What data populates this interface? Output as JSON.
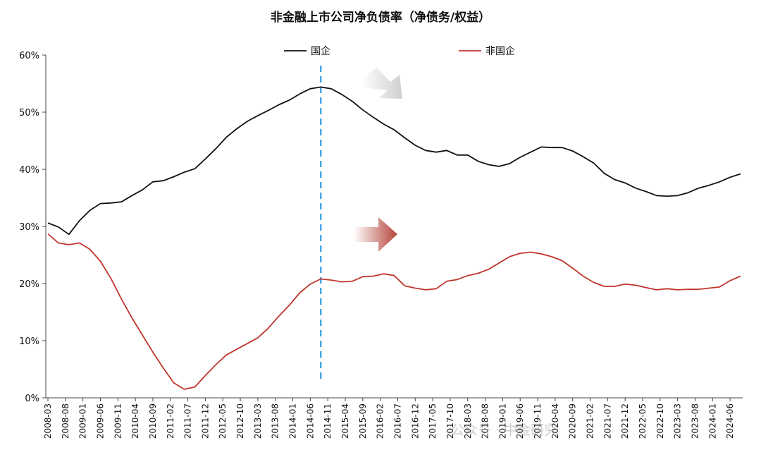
{
  "chart_data": {
    "type": "line",
    "title": "非金融上市公司净负债率（净债务/权益）",
    "xlabel": "",
    "ylabel": "",
    "ylim": [
      0,
      60
    ],
    "y_ticks": [
      "0%",
      "10%",
      "20%",
      "30%",
      "40%",
      "50%",
      "60%"
    ],
    "legend_position": "top",
    "grid": false,
    "x": [
      "2008-03",
      "2008-06",
      "2008-09",
      "2008-12",
      "2009-03",
      "2009-06",
      "2009-09",
      "2009-12",
      "2010-03",
      "2010-06",
      "2010-09",
      "2010-12",
      "2011-03",
      "2011-06",
      "2011-09",
      "2011-12",
      "2012-03",
      "2012-06",
      "2012-09",
      "2012-12",
      "2013-03",
      "2013-06",
      "2013-09",
      "2013-12",
      "2014-03",
      "2014-06",
      "2014-09",
      "2014-12",
      "2015-03",
      "2015-06",
      "2015-09",
      "2015-12",
      "2016-03",
      "2016-06",
      "2016-09",
      "2016-12",
      "2017-03",
      "2017-06",
      "2017-09",
      "2017-12",
      "2018-03",
      "2018-06",
      "2018-09",
      "2018-12",
      "2019-03",
      "2019-06",
      "2019-09",
      "2019-12",
      "2020-03",
      "2020-06",
      "2020-09",
      "2020-12",
      "2021-03",
      "2021-06",
      "2021-09",
      "2021-12",
      "2022-03",
      "2022-06",
      "2022-09",
      "2022-12",
      "2023-03",
      "2023-06",
      "2023-09",
      "2023-12",
      "2024-03",
      "2024-06",
      "2024-09"
    ],
    "x_tick_labels": [
      "2008-03",
      "2008-08",
      "2009-01",
      "2009-06",
      "2009-11",
      "2010-04",
      "2010-09",
      "2011-02",
      "2011-07",
      "2011-12",
      "2012-05",
      "2012-10",
      "2013-03",
      "2013-08",
      "2014-01",
      "2014-06",
      "2014-11",
      "2015-04",
      "2015-09",
      "2016-02",
      "2016-07",
      "2016-12",
      "2017-05",
      "2017-10",
      "2018-03",
      "2018-08",
      "2019-01",
      "2019-06",
      "2019-11",
      "2020-04",
      "2020-09",
      "2021-02",
      "2021-07",
      "2021-12",
      "2022-05",
      "2022-10",
      "2023-03",
      "2023-08",
      "2024-01",
      "2024-06"
    ],
    "series": [
      {
        "name": "国企",
        "color": "#111111",
        "values": [
          30.6,
          29.9,
          28.6,
          31.0,
          32.8,
          34.0,
          34.1,
          34.3,
          35.4,
          36.4,
          37.8,
          38.0,
          38.7,
          39.5,
          40.1,
          41.8,
          43.6,
          45.6,
          47.1,
          48.4,
          49.4,
          50.3,
          51.3,
          52.1,
          53.2,
          54.1,
          54.4,
          54.1,
          53.1,
          51.9,
          50.4,
          49.1,
          47.9,
          46.9,
          45.5,
          44.2,
          43.3,
          43.0,
          43.3,
          42.5,
          42.5,
          41.4,
          40.8,
          40.5,
          41.0,
          42.1,
          43.0,
          43.9,
          43.8,
          43.8,
          43.2,
          42.2,
          41.1,
          39.3,
          38.2,
          37.6,
          36.7,
          36.1,
          35.4,
          35.3,
          35.4,
          35.9,
          36.7,
          37.2,
          37.8,
          38.6,
          39.2
        ]
      },
      {
        "name": "非国企",
        "color": "#c0352b",
        "values": [
          28.7,
          27.1,
          26.8,
          27.1,
          26.0,
          23.9,
          20.9,
          17.3,
          14.0,
          11.0,
          8.0,
          5.2,
          2.6,
          1.5,
          1.9,
          3.9,
          5.8,
          7.5,
          8.5,
          9.5,
          10.5,
          12.2,
          14.3,
          16.2,
          18.4,
          19.9,
          20.8,
          20.6,
          20.3,
          20.4,
          21.2,
          21.3,
          21.7,
          21.4,
          19.6,
          19.2,
          18.9,
          19.1,
          20.4,
          20.7,
          21.4,
          21.8,
          22.5,
          23.6,
          24.7,
          25.3,
          25.5,
          25.2,
          24.7,
          24.0,
          22.7,
          21.3,
          20.2,
          19.5,
          19.5,
          19.9,
          19.7,
          19.3,
          18.9,
          19.1,
          18.9,
          19.0,
          19.0,
          19.2,
          19.4,
          20.5,
          21.3
        ]
      }
    ],
    "annotations": {
      "vertical_line_at": "2014-09",
      "vertical_line_color": "#4aa8e0",
      "arrow_upper_color": "#d0d0d0",
      "arrow_lower_color": "#c0352b"
    }
  },
  "watermark": "公众号 · 中金研究"
}
